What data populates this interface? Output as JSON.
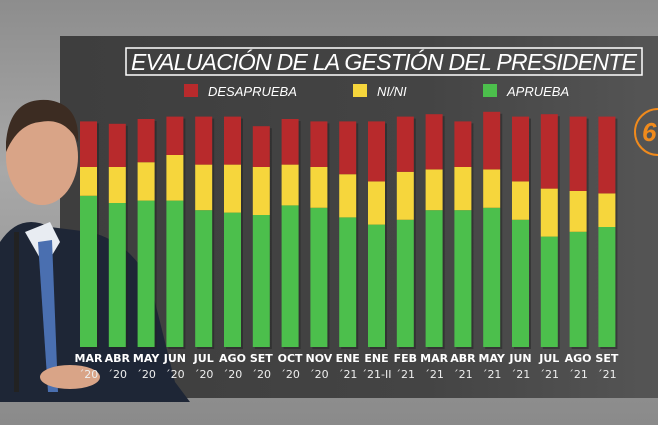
{
  "logo_text": "6",
  "chart_data": {
    "type": "bar",
    "stacked": true,
    "title": "EVALUACIÓN DE LA GESTIÓN DEL PRESIDENTE",
    "xlabel": "",
    "ylabel": "",
    "ylim": [
      0,
      100
    ],
    "grid": false,
    "legend_position": "top",
    "categories": [
      [
        "MAR",
        "´20"
      ],
      [
        "ABR",
        "´20"
      ],
      [
        "MAY",
        "´20"
      ],
      [
        "JUN",
        "´20"
      ],
      [
        "JUL",
        "´20"
      ],
      [
        "AGO",
        "´20"
      ],
      [
        "SET",
        "´20"
      ],
      [
        "OCT",
        "´20"
      ],
      [
        "NOV",
        "´20"
      ],
      [
        "ENE",
        "´21"
      ],
      [
        "ENE",
        "´21-II"
      ],
      [
        "FEB",
        "´21"
      ],
      [
        "MAR",
        "´21"
      ],
      [
        "ABR",
        "´21"
      ],
      [
        "MAY",
        "´21"
      ],
      [
        "JUN",
        "´21"
      ],
      [
        "JUL",
        "´21"
      ],
      [
        "AGO",
        "´21"
      ],
      [
        "SET",
        "´21"
      ]
    ],
    "series": [
      {
        "name": "APRUEBA",
        "color": "#4cbf4c",
        "values": [
          63,
          60,
          61,
          61,
          57,
          56,
          55,
          59,
          58,
          54,
          51,
          53,
          57,
          57,
          58,
          53,
          46,
          48,
          50
        ]
      },
      {
        "name": "NI/NI",
        "color": "#f6d63c",
        "values": [
          12,
          15,
          16,
          19,
          19,
          20,
          20,
          17,
          17,
          18,
          18,
          20,
          17,
          18,
          16,
          16,
          20,
          17,
          14
        ]
      },
      {
        "name": "DESAPRUEBA",
        "color": "#b82a2c",
        "values": [
          19,
          18,
          18,
          16,
          20,
          20,
          17,
          19,
          19,
          22,
          25,
          23,
          23,
          19,
          24,
          27,
          31,
          31,
          32
        ]
      }
    ],
    "legend_order": [
      "DESAPRUEBA",
      "NI/NI",
      "APRUEBA"
    ]
  }
}
